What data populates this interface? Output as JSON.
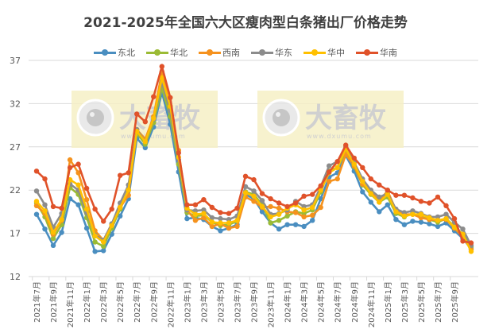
{
  "chart_data": {
    "type": "line",
    "title": "2021-2025年全国六大区瘦肉型白条猪出厂价格走势",
    "xlabel": "",
    "ylabel": "",
    "ylim": [
      12,
      37
    ],
    "yticks": [
      12,
      17,
      22,
      27,
      32,
      37
    ],
    "grid": true,
    "legend_position": "top",
    "watermark": {
      "brand": "大畜牧",
      "url": "www.dxumu.com"
    },
    "x": [
      "2021年7月",
      "2021年8月",
      "2021年9月",
      "2021年10月",
      "2021年11月",
      "2021年12月",
      "2022年1月",
      "2022年2月",
      "2022年3月",
      "2022年4月",
      "2022年5月",
      "2022年6月",
      "2022年7月",
      "2022年8月",
      "2022年9月",
      "2022年10月",
      "2022年11月",
      "2022年12月",
      "2023年1月",
      "2023年2月",
      "2023年3月",
      "2023年4月",
      "2023年5月",
      "2023年6月",
      "2023年7月",
      "2023年8月",
      "2023年9月",
      "2023年10月",
      "2023年11月",
      "2023年12月",
      "2024年1月",
      "2024年2月",
      "2024年3月",
      "2024年4月",
      "2024年5月",
      "2024年6月",
      "2024年7月",
      "2024年8月",
      "2024年9月",
      "2024年10月",
      "2024年11月",
      "2024年12月",
      "2025年1月",
      "2025年2月",
      "2025年3月",
      "2025年4月",
      "2025年5月",
      "2025年6月",
      "2025年7月",
      "2025年8月",
      "2025年9月",
      "2025年10月",
      "2025年11月"
    ],
    "xtick_labels": [
      "2021年7月",
      "2021年9月",
      "2021年11月",
      "2022年1月",
      "2022年3月",
      "2022年5月",
      "2022年7月",
      "2022年9月",
      "2022年11月",
      "2023年1月",
      "2023年3月",
      "2023年5月",
      "2023年7月",
      "2023年9月",
      "2023年11月",
      "2024年1月",
      "2024年3月",
      "2024年5月",
      "2024年7月",
      "2024年9月",
      "2024年11月",
      "2025年1月",
      "2025年3月",
      "2025年5月",
      "2025年7月",
      "2025年9月"
    ],
    "series": [
      {
        "name": "东北",
        "color": "#4A8EC0",
        "values": [
          19.2,
          17.5,
          15.6,
          17.1,
          21.0,
          20.3,
          17.6,
          14.9,
          15.0,
          16.9,
          19.0,
          21.0,
          28.0,
          26.9,
          29.3,
          33.3,
          29.6,
          24.1,
          18.7,
          18.8,
          18.6,
          17.8,
          17.3,
          17.6,
          18.0,
          21.5,
          21.0,
          19.5,
          18.2,
          17.5,
          18.0,
          18.0,
          17.8,
          18.5,
          21.0,
          23.5,
          24.0,
          26.0,
          24.2,
          21.8,
          20.6,
          19.5,
          20.3,
          18.6,
          18.0,
          18.4,
          18.3,
          18.1,
          17.8,
          18.2,
          17.3,
          16.4,
          15.2
        ]
      },
      {
        "name": "华北",
        "color": "#9BBB35",
        "values": [
          20.5,
          18.9,
          16.4,
          18.0,
          22.3,
          21.5,
          18.8,
          16.0,
          15.5,
          17.6,
          19.8,
          22.0,
          28.6,
          27.3,
          29.8,
          33.8,
          30.5,
          25.0,
          19.4,
          19.0,
          19.1,
          18.3,
          17.9,
          18.0,
          18.4,
          21.8,
          21.5,
          20.3,
          18.2,
          18.5,
          19.0,
          19.5,
          19.3,
          19.7,
          21.8,
          24.2,
          24.6,
          26.4,
          24.7,
          22.6,
          21.5,
          20.6,
          21.2,
          19.3,
          18.9,
          19.3,
          18.9,
          18.6,
          18.3,
          18.7,
          17.8,
          16.9,
          15.4
        ]
      },
      {
        "name": "西南",
        "color": "#F5921E",
        "values": [
          20.2,
          19.3,
          16.9,
          18.5,
          25.5,
          24.0,
          20.9,
          17.3,
          16.2,
          18.1,
          20.0,
          21.4,
          29.0,
          27.9,
          30.5,
          35.7,
          31.6,
          26.6,
          19.7,
          18.5,
          18.8,
          17.8,
          18.1,
          17.6,
          17.8,
          21.2,
          20.7,
          20.0,
          20.1,
          19.9,
          19.5,
          19.4,
          18.9,
          19.1,
          20.0,
          23.0,
          23.3,
          26.1,
          24.8,
          22.7,
          21.8,
          20.8,
          21.9,
          19.7,
          19.2,
          19.2,
          18.8,
          18.6,
          18.5,
          18.6,
          17.6,
          16.6,
          15.1
        ]
      },
      {
        "name": "华东",
        "color": "#8C8C8C",
        "values": [
          21.9,
          20.3,
          17.7,
          19.3,
          22.7,
          22.0,
          19.4,
          16.8,
          16.2,
          18.1,
          20.5,
          22.6,
          29.0,
          27.6,
          30.2,
          34.5,
          31.2,
          25.5,
          19.7,
          19.6,
          19.7,
          18.8,
          18.7,
          18.6,
          19.0,
          22.4,
          21.9,
          20.8,
          19.2,
          19.3,
          19.7,
          20.7,
          20.1,
          20.3,
          22.4,
          24.8,
          25.3,
          27.0,
          25.2,
          23.3,
          22.0,
          21.2,
          21.6,
          19.8,
          19.4,
          19.6,
          19.3,
          18.9,
          18.9,
          19.2,
          18.3,
          17.5,
          15.6
        ]
      },
      {
        "name": "华中",
        "color": "#FFC000",
        "values": [
          20.7,
          19.6,
          17.1,
          18.6,
          23.2,
          22.6,
          19.8,
          16.7,
          16.0,
          17.9,
          20.0,
          22.0,
          28.8,
          27.6,
          30.3,
          35.0,
          31.7,
          25.8,
          19.9,
          19.2,
          19.3,
          18.3,
          18.2,
          18.2,
          18.5,
          21.7,
          21.3,
          20.1,
          18.9,
          19.2,
          19.9,
          20.3,
          19.7,
          20.0,
          22.0,
          24.0,
          24.6,
          26.8,
          25.0,
          23.0,
          21.6,
          20.6,
          21.5,
          19.5,
          19.0,
          19.2,
          19.2,
          18.8,
          18.5,
          18.7,
          17.7,
          16.9,
          14.9
        ]
      },
      {
        "name": "华南",
        "color": "#E0522A",
        "values": [
          24.2,
          23.3,
          20.1,
          19.9,
          24.6,
          25.0,
          22.2,
          19.8,
          18.4,
          19.8,
          23.7,
          24.0,
          30.8,
          29.9,
          32.8,
          36.3,
          32.7,
          26.3,
          20.3,
          20.3,
          20.9,
          20.0,
          19.4,
          19.3,
          19.9,
          23.6,
          23.2,
          21.6,
          21.0,
          20.5,
          20.1,
          20.5,
          21.3,
          21.5,
          22.5,
          24.1,
          25.3,
          27.2,
          25.7,
          24.6,
          23.3,
          22.6,
          22.0,
          21.4,
          21.4,
          21.1,
          20.7,
          20.5,
          21.2,
          20.2,
          18.7,
          16.1,
          15.9
        ]
      }
    ]
  },
  "title": "2021-2025年全国六大区瘦肉型白条猪出厂价格走势",
  "legend": [
    {
      "label": "东北",
      "color": "#4A8EC0"
    },
    {
      "label": "华北",
      "color": "#9BBB35"
    },
    {
      "label": "西南",
      "color": "#F5921E"
    },
    {
      "label": "华东",
      "color": "#8C8C8C"
    },
    {
      "label": "华中",
      "color": "#FFC000"
    },
    {
      "label": "华南",
      "color": "#E0522A"
    }
  ]
}
